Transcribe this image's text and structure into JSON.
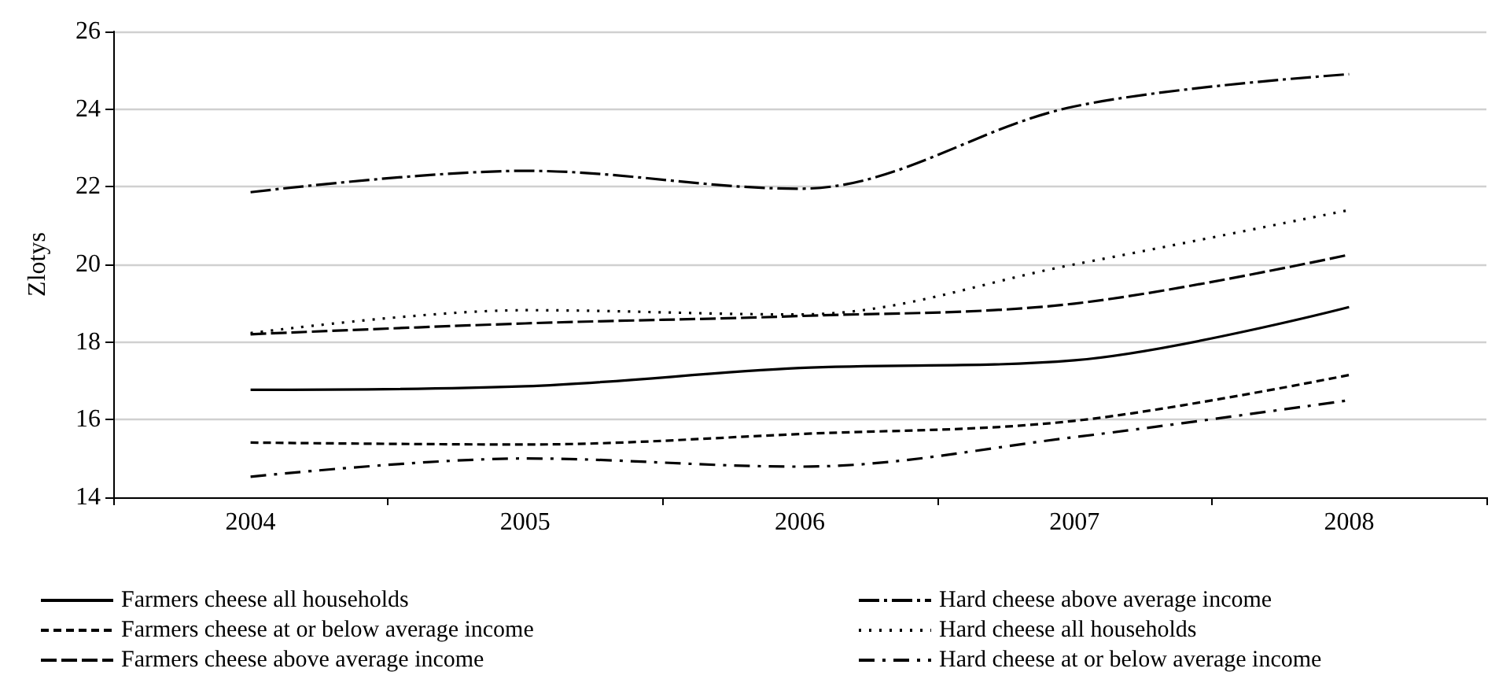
{
  "chart_data": {
    "type": "line",
    "ylabel": "Zlotys",
    "categories": [
      "2004",
      "2005",
      "2006",
      "2007",
      "2008"
    ],
    "series": [
      {
        "name": "Farmers cheese all households",
        "color": "#000000",
        "line_style": "solid",
        "values": [
          16.77,
          16.86,
          17.33,
          17.53,
          18.9
        ]
      },
      {
        "name": "Farmers cheese at or below average income",
        "color": "#000000",
        "line_style": "dashed",
        "values": [
          15.41,
          15.36,
          15.63,
          15.97,
          17.15
        ]
      },
      {
        "name": "Farmers cheese above average income",
        "color": "#000000",
        "line_style": "longdash",
        "values": [
          18.2,
          18.48,
          18.67,
          18.99,
          20.25
        ]
      },
      {
        "name": "Hard cheese above average income",
        "color": "#000000",
        "line_style": "longdashdot",
        "values": [
          21.86,
          22.41,
          21.95,
          24.07,
          24.9
        ]
      },
      {
        "name": "Hard cheese all households",
        "color": "#000000",
        "line_style": "dotted",
        "values": [
          18.23,
          18.82,
          18.71,
          20.0,
          21.4
        ]
      },
      {
        "name": "Hard cheese at or below average income",
        "color": "#000000",
        "line_style": "dashdot",
        "values": [
          14.53,
          15.0,
          14.79,
          15.55,
          16.5
        ]
      }
    ],
    "ylim": [
      14,
      26
    ],
    "yticks": [
      14,
      16,
      18,
      20,
      22,
      24,
      26
    ],
    "grid": "y",
    "legend": "bottom",
    "marker": "none"
  }
}
